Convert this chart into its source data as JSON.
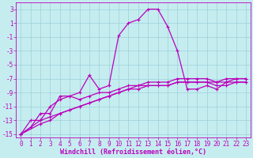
{
  "xlabel": "Windchill (Refroidissement éolien,°C)",
  "background_color": "#c5edf0",
  "grid_color": "#9ecfda",
  "line_color": "#bb00bb",
  "xlim": [
    -0.5,
    23.5
  ],
  "ylim": [
    -15.5,
    4.0
  ],
  "xticks": [
    0,
    1,
    2,
    3,
    4,
    5,
    6,
    7,
    8,
    9,
    10,
    11,
    12,
    13,
    14,
    15,
    16,
    17,
    18,
    19,
    20,
    21,
    22,
    23
  ],
  "yticks": [
    -15,
    -13,
    -11,
    -9,
    -7,
    -5,
    -3,
    -1,
    1,
    3
  ],
  "line1_x": [
    0,
    1,
    2,
    3,
    4,
    5,
    6,
    7,
    8,
    9,
    10,
    11,
    12,
    13,
    14,
    15,
    16,
    17,
    18,
    19,
    20,
    21,
    22,
    23
  ],
  "line1_y": [
    -15,
    -13,
    -13,
    -11,
    -10,
    -9.5,
    -9,
    -6.5,
    -8.5,
    -8,
    -0.8,
    1,
    1.5,
    3,
    3,
    0.5,
    -3,
    -8.5,
    -8.5,
    -8,
    -8.5,
    -7.5,
    -7,
    -7
  ],
  "line2_x": [
    0,
    1,
    2,
    3,
    4,
    5,
    6,
    7,
    8,
    9,
    10,
    11,
    12,
    13,
    14,
    15,
    16,
    17,
    18,
    19,
    20,
    21,
    22,
    23
  ],
  "line2_y": [
    -15,
    -14,
    -12,
    -12,
    -9.5,
    -9.5,
    -10,
    -9.5,
    -9,
    -9,
    -8.5,
    -8,
    -8,
    -8,
    -8,
    -8,
    -7.5,
    -7.5,
    -7.5,
    -7.5,
    -8,
    -8,
    -7.5,
    -7.5
  ],
  "line3_x": [
    0,
    2,
    3,
    4,
    5,
    6,
    7,
    8,
    9,
    10,
    11,
    12,
    13,
    14,
    15,
    16,
    17,
    18,
    19,
    20,
    21,
    22,
    23
  ],
  "line3_y": [
    -15,
    -13,
    -12.5,
    -12,
    -11.5,
    -11,
    -10.5,
    -10,
    -9.5,
    -9,
    -8.5,
    -8.5,
    -8,
    -8,
    -8,
    -7.5,
    -7.5,
    -7.5,
    -7.5,
    -7.5,
    -7.5,
    -7.5,
    -7.5
  ],
  "line4_x": [
    0,
    2,
    3,
    4,
    5,
    6,
    7,
    8,
    9,
    10,
    11,
    12,
    13,
    14,
    15,
    16,
    17,
    18,
    19,
    20,
    21,
    22,
    23
  ],
  "line4_y": [
    -15,
    -13.5,
    -13,
    -12,
    -11.5,
    -11,
    -10.5,
    -10,
    -9.5,
    -9,
    -8.5,
    -8,
    -7.5,
    -7.5,
    -7.5,
    -7,
    -7,
    -7,
    -7,
    -7.5,
    -7,
    -7,
    -7
  ],
  "tick_fontsize": 5.5,
  "xlabel_fontsize": 6.0
}
